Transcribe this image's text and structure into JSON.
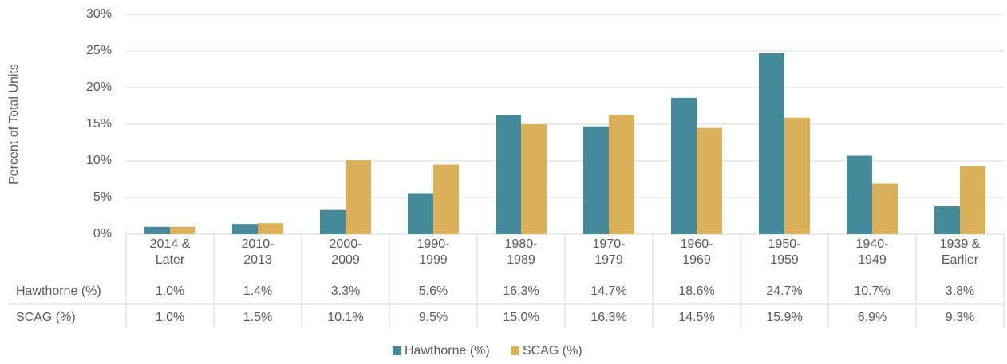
{
  "chart_data": {
    "type": "bar",
    "y_axis_label": "Percent of Total Units",
    "categories": [
      "2014 & Later",
      "2010-2013",
      "2000-2009",
      "1990-1999",
      "1980-1989",
      "1970-1979",
      "1960-1969",
      "1950-1959",
      "1940-1949",
      "1939 & Earlier"
    ],
    "series": [
      {
        "name": "Hawthorne (%)",
        "color": "#468a99",
        "values": [
          1.0,
          1.4,
          3.3,
          5.6,
          16.3,
          14.7,
          18.6,
          24.7,
          10.7,
          3.8
        ],
        "value_labels": [
          "1.0%",
          "1.4%",
          "3.3%",
          "5.6%",
          "16.3%",
          "14.7%",
          "18.6%",
          "24.7%",
          "10.7%",
          "3.8%"
        ]
      },
      {
        "name": "SCAG (%)",
        "color": "#dbb05a",
        "values": [
          1.0,
          1.5,
          10.1,
          9.5,
          15.0,
          16.3,
          14.5,
          15.9,
          6.9,
          9.3
        ],
        "value_labels": [
          "1.0%",
          "1.5%",
          "10.1%",
          "9.5%",
          "15.0%",
          "16.3%",
          "14.5%",
          "15.9%",
          "6.9%",
          "9.3%"
        ]
      }
    ],
    "ylim": [
      0,
      30
    ],
    "yticks": [
      {
        "value": 0,
        "label": "0%"
      },
      {
        "value": 5,
        "label": "5%"
      },
      {
        "value": 10,
        "label": "10%"
      },
      {
        "value": 15,
        "label": "15%"
      },
      {
        "value": 20,
        "label": "20%"
      },
      {
        "value": 25,
        "label": "25%"
      },
      {
        "value": 30,
        "label": "30%"
      }
    ],
    "grid": true,
    "legend": "bottom"
  }
}
